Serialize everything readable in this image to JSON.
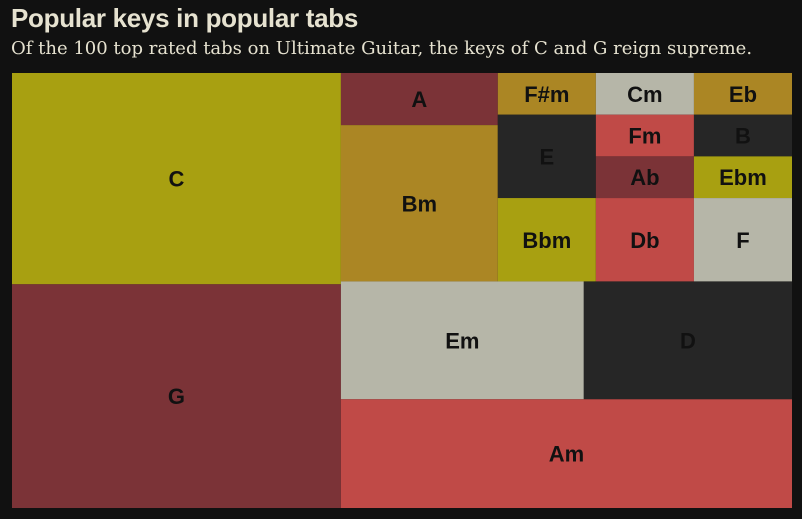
{
  "header": {
    "title": "Popular keys in popular tabs",
    "subtitle": "Of the 100 top rated tabs on Ultimate Guitar, the keys of C and G reign supreme."
  },
  "chart_data": {
    "type": "treemap",
    "title": "Popular keys in popular tabs",
    "subtitle": "Of the 100 top rated tabs on Ultimate Guitar, the keys of C and G reign supreme.",
    "unit": "tabs",
    "items": [
      {
        "key": "C",
        "value": 17,
        "color": "#a8a011"
      },
      {
        "key": "G",
        "value": 18,
        "color": "#7b3337"
      },
      {
        "key": "A",
        "value": 2,
        "color": "#7b3337"
      },
      {
        "key": "Bm",
        "value": 6,
        "color": "#ab8624"
      },
      {
        "key": "F#m",
        "value": 1,
        "color": "#ab8624"
      },
      {
        "key": "E",
        "value": 2,
        "color": "#262626"
      },
      {
        "key": "Bbm",
        "value": 2,
        "color": "#a8a011"
      },
      {
        "key": "Cm",
        "value": 1,
        "color": "#b6b6a8"
      },
      {
        "key": "Fm",
        "value": 1,
        "color": "#c04a47"
      },
      {
        "key": "Ab",
        "value": 1,
        "color": "#7b3337"
      },
      {
        "key": "Db",
        "value": 2,
        "color": "#c04a47"
      },
      {
        "key": "Eb",
        "value": 1,
        "color": "#ab8624"
      },
      {
        "key": "B",
        "value": 1,
        "color": "#262626"
      },
      {
        "key": "Ebm",
        "value": 1,
        "color": "#a8a011"
      },
      {
        "key": "F",
        "value": 2,
        "color": "#b6b6a8"
      },
      {
        "key": "Em",
        "value": 7,
        "color": "#b6b6a8"
      },
      {
        "key": "D",
        "value": 6,
        "color": "#262626"
      },
      {
        "key": "Am",
        "value": 12,
        "color": "#c04a47"
      }
    ]
  }
}
